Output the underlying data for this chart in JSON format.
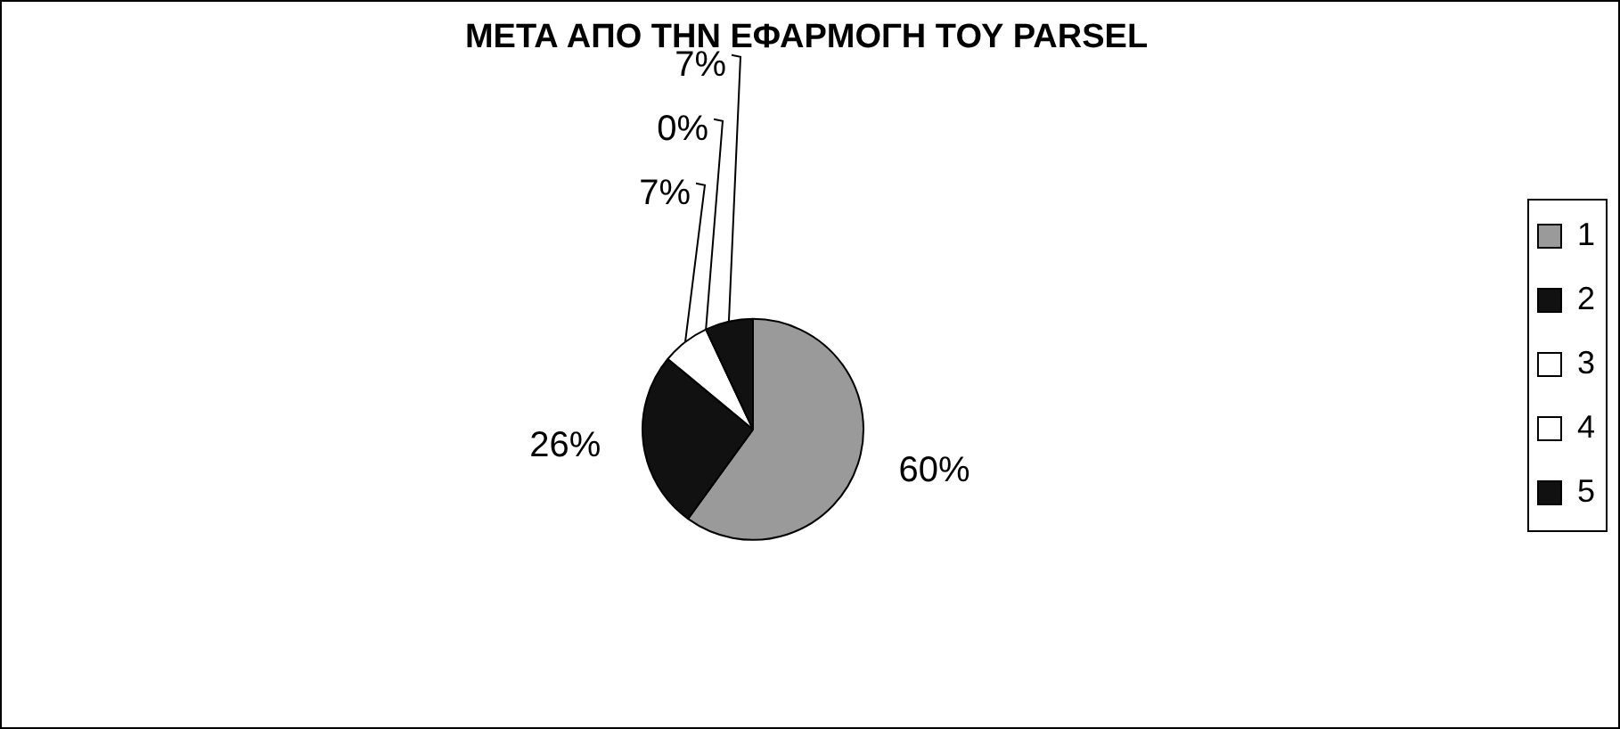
{
  "chart_data": {
    "type": "pie",
    "title": "ΜΕΤΑ ΑΠΟ ΤΗΝ ΕΦΑΡΜΟΓΗ ΤΟΥ PARSEL",
    "categories": [
      "1",
      "2",
      "3",
      "4",
      "5"
    ],
    "values": [
      60,
      26,
      7,
      0,
      7
    ],
    "value_labels": [
      "60%",
      "26%",
      "7%",
      "0%",
      "7%"
    ],
    "colors": [
      "#9a9a9a",
      "#111111",
      "#ffffff",
      "#ffffff",
      "#111111"
    ],
    "legend": "right"
  }
}
